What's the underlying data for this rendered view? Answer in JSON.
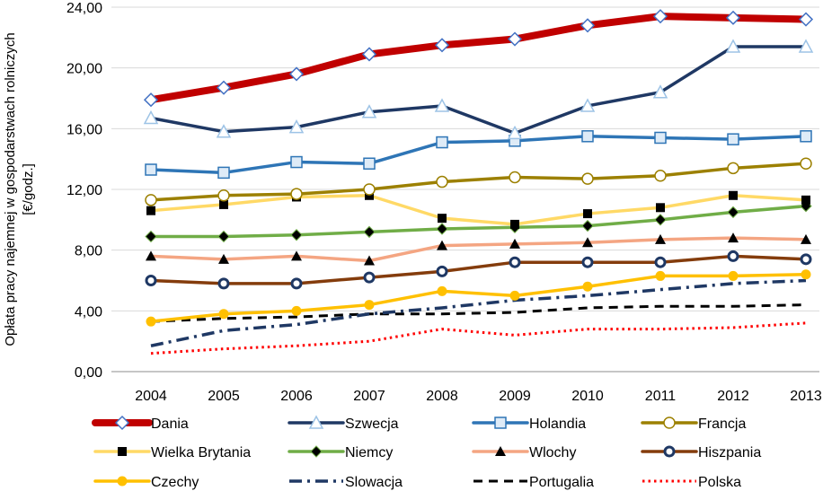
{
  "chart_data": {
    "type": "line",
    "title": "",
    "xlabel": "",
    "ylabel_lines": [
      "Opłata pracy najemnej w gospodarstwach rolniczych",
      "[€/godz.]"
    ],
    "ylim": [
      0,
      24
    ],
    "yticks": [
      "0,00",
      "4,00",
      "8,00",
      "12,00",
      "16,00",
      "20,00",
      "24,00"
    ],
    "x": [
      "2004",
      "2005",
      "2006",
      "2007",
      "2008",
      "2009",
      "2010",
      "2011",
      "2012",
      "2013"
    ],
    "grid": "horizontal",
    "legend_position": "bottom",
    "series": [
      {
        "name": "Dania",
        "color": "#c00000",
        "marker": "diamond-open",
        "style": "thick",
        "values": [
          17.9,
          18.7,
          19.6,
          20.9,
          21.5,
          21.9,
          22.8,
          23.4,
          23.3,
          23.2
        ]
      },
      {
        "name": "Szwecja",
        "color": "#1f3864",
        "marker": "triangle-open",
        "style": "solid",
        "values": [
          16.7,
          15.8,
          16.1,
          17.1,
          17.5,
          15.7,
          17.5,
          18.4,
          21.4,
          21.4
        ]
      },
      {
        "name": "Holandia",
        "color": "#2e75b6",
        "marker": "square-open",
        "style": "solid",
        "values": [
          13.3,
          13.1,
          13.8,
          13.7,
          15.1,
          15.2,
          15.5,
          15.4,
          15.3,
          15.5
        ]
      },
      {
        "name": "Francja",
        "color": "#9c8000",
        "marker": "circle-open",
        "style": "solid",
        "values": [
          11.3,
          11.6,
          11.7,
          12.0,
          12.5,
          12.8,
          12.7,
          12.9,
          13.4,
          13.7
        ]
      },
      {
        "name": "Wielka Brytania",
        "color": "#ffd966",
        "marker": "square-filled",
        "style": "solid",
        "values": [
          10.6,
          11.0,
          11.5,
          11.6,
          10.1,
          9.7,
          10.4,
          10.8,
          11.6,
          11.3
        ]
      },
      {
        "name": "Niemcy",
        "color": "#70ad47",
        "marker": "diamond-filled",
        "style": "solid",
        "values": [
          8.9,
          8.9,
          9.0,
          9.2,
          9.4,
          9.5,
          9.6,
          10.0,
          10.5,
          10.9
        ]
      },
      {
        "name": "Wlochy",
        "color": "#f4a582",
        "marker": "triangle-filled",
        "style": "solid",
        "values": [
          7.6,
          7.4,
          7.6,
          7.3,
          8.3,
          8.4,
          8.5,
          8.7,
          8.8,
          8.7
        ]
      },
      {
        "name": "Hiszpania",
        "color": "#843c0c",
        "marker": "circle-ring",
        "style": "solid",
        "values": [
          6.0,
          5.8,
          5.8,
          6.2,
          6.6,
          7.2,
          7.2,
          7.2,
          7.6,
          7.4
        ]
      },
      {
        "name": "Czechy",
        "color": "#ffc000",
        "marker": "circle-filled",
        "style": "solid",
        "values": [
          3.3,
          3.8,
          4.0,
          4.4,
          5.3,
          5.0,
          5.6,
          6.3,
          6.3,
          6.4
        ]
      },
      {
        "name": "Slowacja",
        "color": "#1f3864",
        "marker": "none",
        "style": "dashdot",
        "values": [
          1.7,
          2.7,
          3.1,
          3.8,
          4.2,
          4.7,
          5.0,
          5.4,
          5.8,
          6.0
        ]
      },
      {
        "name": "Portugalia",
        "color": "#000000",
        "marker": "none",
        "style": "dash",
        "values": [
          3.3,
          3.5,
          3.6,
          3.8,
          3.8,
          3.9,
          4.2,
          4.3,
          4.3,
          4.4
        ]
      },
      {
        "name": "Polska",
        "color": "#ff0000",
        "marker": "none",
        "style": "dot",
        "values": [
          1.2,
          1.5,
          1.7,
          2.0,
          2.8,
          2.4,
          2.8,
          2.8,
          2.9,
          3.2
        ]
      }
    ]
  }
}
